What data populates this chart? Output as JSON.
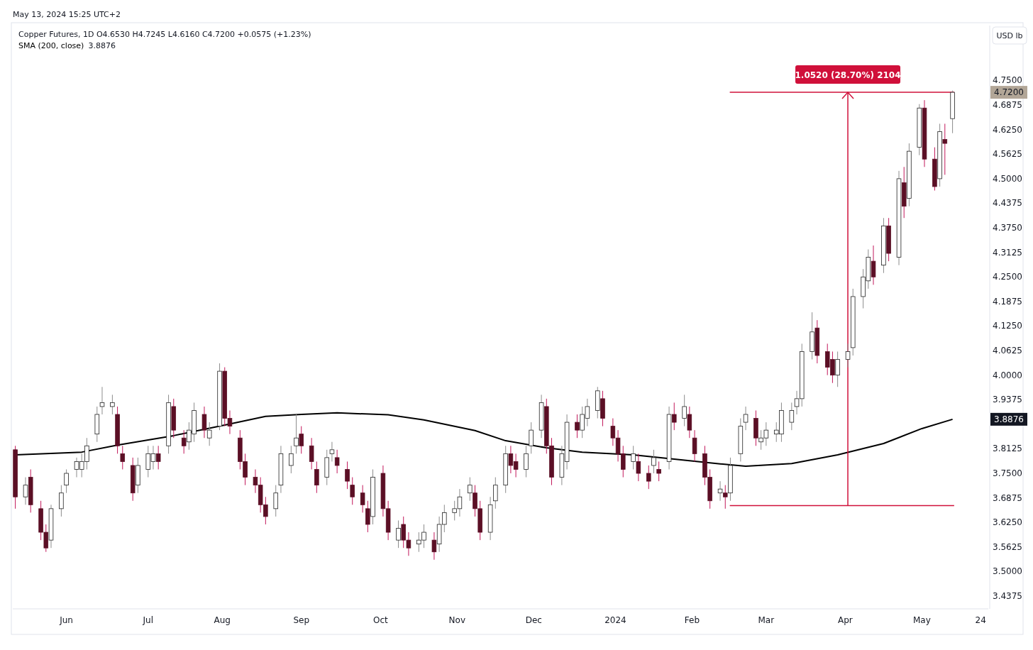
{
  "chart_data": {
    "type": "candlestick",
    "title": "Copper Futures, 1D  O4.6530 H4.7245 L4.6160 C4.7200 +0.0575 (+1.23%)",
    "subtitle": "May 13, 2024 15:25 UTC+2",
    "ylabel": "USD lb",
    "x": [
      "2023-05-12",
      "2023-05-16",
      "2023-05-18",
      "2023-05-22",
      "2023-05-24",
      "2023-05-26",
      "2023-05-30",
      "2023-06-01",
      "2023-06-05",
      "2023-06-07",
      "2023-06-09",
      "2023-06-13",
      "2023-06-15",
      "2023-06-19",
      "2023-06-21",
      "2023-06-23",
      "2023-06-27",
      "2023-06-29",
      "2023-07-03",
      "2023-07-05",
      "2023-07-07",
      "2023-07-11",
      "2023-07-13",
      "2023-07-17",
      "2023-07-19",
      "2023-07-21",
      "2023-07-25",
      "2023-07-27",
      "2023-07-31",
      "2023-08-02",
      "2023-08-04",
      "2023-08-08",
      "2023-08-10",
      "2023-08-14",
      "2023-08-16",
      "2023-08-18",
      "2023-08-22",
      "2023-08-24",
      "2023-08-28",
      "2023-08-30",
      "2023-09-01",
      "2023-09-05",
      "2023-09-07",
      "2023-09-11",
      "2023-09-13",
      "2023-09-15",
      "2023-09-19",
      "2023-09-21",
      "2023-09-25",
      "2023-09-27",
      "2023-09-29",
      "2023-10-03",
      "2023-10-05",
      "2023-10-09",
      "2023-10-11",
      "2023-10-13",
      "2023-10-17",
      "2023-10-19",
      "2023-10-23",
      "2023-10-25",
      "2023-10-27",
      "2023-10-31",
      "2023-11-02",
      "2023-11-06",
      "2023-11-08",
      "2023-11-10",
      "2023-11-14",
      "2023-11-16",
      "2023-11-20",
      "2023-11-22",
      "2023-11-24",
      "2023-11-28",
      "2023-11-30",
      "2023-12-04",
      "2023-12-06",
      "2023-12-08",
      "2023-12-12",
      "2023-12-14",
      "2023-12-18",
      "2023-12-20",
      "2023-12-22",
      "2023-12-26",
      "2023-12-28",
      "2024-01-01",
      "2024-01-03",
      "2024-01-05",
      "2024-01-09",
      "2024-01-11",
      "2024-01-15",
      "2024-01-17",
      "2024-01-19",
      "2024-01-23",
      "2024-01-25",
      "2024-01-29",
      "2024-01-31",
      "2024-02-02",
      "2024-02-06",
      "2024-02-08",
      "2024-02-12",
      "2024-02-14",
      "2024-02-16",
      "2024-02-20",
      "2024-02-22",
      "2024-02-26",
      "2024-02-28",
      "2024-03-01",
      "2024-03-05",
      "2024-03-07",
      "2024-03-11",
      "2024-03-13",
      "2024-03-15",
      "2024-03-19",
      "2024-03-21",
      "2024-03-25",
      "2024-03-27",
      "2024-03-29",
      "2024-04-02",
      "2024-04-04",
      "2024-04-08",
      "2024-04-10",
      "2024-04-12",
      "2024-04-16",
      "2024-04-18",
      "2024-04-22",
      "2024-04-24",
      "2024-04-26",
      "2024-04-30",
      "2024-05-02",
      "2024-05-06",
      "2024-05-08",
      "2024-05-10",
      "2024-05-13"
    ],
    "ohlc": [
      [
        3.81,
        3.82,
        3.66,
        3.69
      ],
      [
        3.69,
        3.74,
        3.67,
        3.72
      ],
      [
        3.74,
        3.76,
        3.65,
        3.67
      ],
      [
        3.66,
        3.68,
        3.58,
        3.6
      ],
      [
        3.6,
        3.62,
        3.55,
        3.56
      ],
      [
        3.58,
        3.67,
        3.56,
        3.66
      ],
      [
        3.66,
        3.72,
        3.64,
        3.7
      ],
      [
        3.72,
        3.76,
        3.7,
        3.75
      ],
      [
        3.76,
        3.79,
        3.74,
        3.78
      ],
      [
        3.76,
        3.8,
        3.74,
        3.78
      ],
      [
        3.78,
        3.84,
        3.76,
        3.82
      ],
      [
        3.85,
        3.92,
        3.83,
        3.9
      ],
      [
        3.92,
        3.97,
        3.9,
        3.93
      ],
      [
        3.92,
        3.95,
        3.9,
        3.93
      ],
      [
        3.9,
        3.92,
        3.8,
        3.82
      ],
      [
        3.8,
        3.82,
        3.76,
        3.78
      ],
      [
        3.77,
        3.79,
        3.68,
        3.7
      ],
      [
        3.72,
        3.79,
        3.7,
        3.77
      ],
      [
        3.76,
        3.82,
        3.74,
        3.8
      ],
      [
        3.78,
        3.82,
        3.76,
        3.8
      ],
      [
        3.8,
        3.82,
        3.76,
        3.78
      ],
      [
        3.82,
        3.95,
        3.8,
        3.93
      ],
      [
        3.92,
        3.94,
        3.84,
        3.86
      ],
      [
        3.84,
        3.86,
        3.8,
        3.82
      ],
      [
        3.83,
        3.88,
        3.81,
        3.86
      ],
      [
        3.85,
        3.93,
        3.83,
        3.91
      ],
      [
        3.9,
        3.92,
        3.84,
        3.86
      ],
      [
        3.84,
        3.88,
        3.82,
        3.86
      ],
      [
        3.87,
        4.03,
        3.86,
        4.01
      ],
      [
        4.01,
        4.02,
        3.87,
        3.89
      ],
      [
        3.89,
        3.91,
        3.85,
        3.87
      ],
      [
        3.84,
        3.86,
        3.76,
        3.78
      ],
      [
        3.78,
        3.8,
        3.72,
        3.74
      ],
      [
        3.74,
        3.76,
        3.7,
        3.72
      ],
      [
        3.72,
        3.74,
        3.65,
        3.67
      ],
      [
        3.67,
        3.69,
        3.62,
        3.64
      ],
      [
        3.66,
        3.72,
        3.64,
        3.7
      ],
      [
        3.72,
        3.82,
        3.7,
        3.8
      ],
      [
        3.77,
        3.82,
        3.75,
        3.8
      ],
      [
        3.82,
        3.9,
        3.8,
        3.84
      ],
      [
        3.85,
        3.87,
        3.8,
        3.82
      ],
      [
        3.82,
        3.84,
        3.76,
        3.78
      ],
      [
        3.76,
        3.78,
        3.7,
        3.72
      ],
      [
        3.74,
        3.81,
        3.72,
        3.79
      ],
      [
        3.8,
        3.83,
        3.78,
        3.81
      ],
      [
        3.79,
        3.81,
        3.75,
        3.77
      ],
      [
        3.76,
        3.78,
        3.71,
        3.73
      ],
      [
        3.72,
        3.74,
        3.67,
        3.69
      ],
      [
        3.7,
        3.72,
        3.65,
        3.67
      ],
      [
        3.66,
        3.68,
        3.6,
        3.62
      ],
      [
        3.64,
        3.76,
        3.62,
        3.74
      ],
      [
        3.75,
        3.77,
        3.64,
        3.66
      ],
      [
        3.66,
        3.68,
        3.58,
        3.6
      ],
      [
        3.58,
        3.63,
        3.56,
        3.61
      ],
      [
        3.62,
        3.64,
        3.56,
        3.58
      ],
      [
        3.58,
        3.6,
        3.54,
        3.56
      ],
      [
        3.57,
        3.6,
        3.55,
        3.58
      ],
      [
        3.58,
        3.62,
        3.56,
        3.6
      ],
      [
        3.58,
        3.6,
        3.53,
        3.55
      ],
      [
        3.57,
        3.64,
        3.55,
        3.62
      ],
      [
        3.62,
        3.67,
        3.6,
        3.65
      ],
      [
        3.65,
        3.68,
        3.63,
        3.66
      ],
      [
        3.66,
        3.71,
        3.64,
        3.69
      ],
      [
        3.7,
        3.74,
        3.68,
        3.72
      ],
      [
        3.7,
        3.72,
        3.64,
        3.66
      ],
      [
        3.66,
        3.68,
        3.58,
        3.6
      ],
      [
        3.6,
        3.69,
        3.58,
        3.67
      ],
      [
        3.68,
        3.74,
        3.66,
        3.72
      ],
      [
        3.72,
        3.82,
        3.7,
        3.8
      ],
      [
        3.8,
        3.82,
        3.75,
        3.77
      ],
      [
        3.78,
        3.8,
        3.74,
        3.76
      ],
      [
        3.76,
        3.82,
        3.74,
        3.8
      ],
      [
        3.82,
        3.88,
        3.8,
        3.86
      ],
      [
        3.86,
        3.95,
        3.84,
        3.93
      ],
      [
        3.92,
        3.94,
        3.8,
        3.82
      ],
      [
        3.82,
        3.84,
        3.72,
        3.74
      ],
      [
        3.74,
        3.82,
        3.72,
        3.8
      ],
      [
        3.78,
        3.9,
        3.76,
        3.88
      ],
      [
        3.88,
        3.9,
        3.84,
        3.86
      ],
      [
        3.86,
        3.92,
        3.84,
        3.9
      ],
      [
        3.89,
        3.94,
        3.87,
        3.92
      ],
      [
        3.91,
        3.97,
        3.89,
        3.96
      ],
      [
        3.94,
        3.96,
        3.87,
        3.89
      ],
      [
        3.87,
        3.89,
        3.82,
        3.84
      ],
      [
        3.84,
        3.86,
        3.78,
        3.8
      ],
      [
        3.8,
        3.82,
        3.74,
        3.76
      ],
      [
        3.78,
        3.82,
        3.76,
        3.8
      ],
      [
        3.78,
        3.8,
        3.73,
        3.75
      ],
      [
        3.75,
        3.77,
        3.71,
        3.73
      ],
      [
        3.77,
        3.81,
        3.75,
        3.79
      ],
      [
        3.76,
        3.78,
        3.73,
        3.75
      ],
      [
        3.78,
        3.92,
        3.76,
        3.9
      ],
      [
        3.9,
        3.93,
        3.86,
        3.88
      ],
      [
        3.89,
        3.95,
        3.87,
        3.92
      ],
      [
        3.9,
        3.92,
        3.84,
        3.86
      ],
      [
        3.84,
        3.86,
        3.78,
        3.8
      ],
      [
        3.8,
        3.82,
        3.72,
        3.74
      ],
      [
        3.74,
        3.76,
        3.66,
        3.68
      ],
      [
        3.7,
        3.73,
        3.68,
        3.71
      ],
      [
        3.7,
        3.72,
        3.66,
        3.69
      ],
      [
        3.7,
        3.79,
        3.68,
        3.77
      ],
      [
        3.8,
        3.89,
        3.78,
        3.87
      ],
      [
        3.88,
        3.92,
        3.86,
        3.9
      ],
      [
        3.89,
        3.91,
        3.82,
        3.84
      ],
      [
        3.83,
        3.86,
        3.81,
        3.84
      ],
      [
        3.84,
        3.88,
        3.82,
        3.86
      ],
      [
        3.85,
        3.88,
        3.83,
        3.86
      ],
      [
        3.85,
        3.93,
        3.83,
        3.91
      ],
      [
        3.88,
        3.93,
        3.86,
        3.91
      ],
      [
        3.92,
        3.96,
        3.9,
        3.94
      ],
      [
        3.94,
        4.08,
        3.92,
        4.06
      ],
      [
        4.06,
        4.16,
        4.04,
        4.11
      ],
      [
        4.12,
        4.14,
        4.03,
        4.05
      ],
      [
        4.06,
        4.08,
        4.0,
        4.02
      ],
      [
        4.04,
        4.06,
        3.98,
        4.0
      ],
      [
        4.0,
        4.06,
        3.97,
        4.04
      ],
      [
        4.04,
        4.08,
        4.02,
        4.06
      ],
      [
        4.07,
        4.22,
        4.05,
        4.2
      ],
      [
        4.2,
        4.27,
        4.17,
        4.25
      ],
      [
        4.24,
        4.32,
        4.22,
        4.3
      ],
      [
        4.29,
        4.33,
        4.23,
        4.25
      ],
      [
        4.28,
        4.4,
        4.26,
        4.38
      ],
      [
        4.38,
        4.4,
        4.29,
        4.31
      ],
      [
        4.3,
        4.52,
        4.28,
        4.5
      ],
      [
        4.49,
        4.53,
        4.4,
        4.43
      ],
      [
        4.45,
        4.59,
        4.43,
        4.57
      ],
      [
        4.58,
        4.69,
        4.56,
        4.68
      ],
      [
        4.68,
        4.7,
        4.53,
        4.55
      ],
      [
        4.55,
        4.58,
        4.47,
        4.48
      ],
      [
        4.5,
        4.64,
        4.48,
        4.62
      ],
      [
        4.6,
        4.64,
        4.51,
        4.59
      ],
      [
        4.653,
        4.7245,
        4.616,
        4.72
      ]
    ],
    "series": [
      {
        "type": "line",
        "name": "SMA (200, close)",
        "color": "#000000",
        "x": [
          "2023-05-12",
          "2023-06-07",
          "2023-06-21",
          "2023-07-13",
          "2023-08-02",
          "2023-08-18",
          "2023-09-01",
          "2023-09-15",
          "2023-10-05",
          "2023-10-19",
          "2023-11-08",
          "2023-11-20",
          "2023-12-06",
          "2023-12-20",
          "2024-01-09",
          "2024-01-25",
          "2024-02-12",
          "2024-02-22",
          "2024-03-11",
          "2024-03-29",
          "2024-04-16",
          "2024-05-01",
          "2024-05-13"
        ],
        "values": [
          3.797,
          3.804,
          3.822,
          3.846,
          3.873,
          3.895,
          3.9,
          3.904,
          3.899,
          3.886,
          3.859,
          3.833,
          3.815,
          3.804,
          3.797,
          3.786,
          3.774,
          3.768,
          3.775,
          3.797,
          3.826,
          3.864,
          3.8876
        ]
      }
    ],
    "xlim": [
      "2023-05-11",
      "2024-05-27"
    ],
    "xticks": [
      {
        "value": "2023-06-01",
        "label": "Jun"
      },
      {
        "value": "2023-07-03",
        "label": "Jul"
      },
      {
        "value": "2023-08-01",
        "label": "Aug"
      },
      {
        "value": "2023-09-01",
        "label": "Sep"
      },
      {
        "value": "2023-10-02",
        "label": "Oct"
      },
      {
        "value": "2023-11-01",
        "label": "Nov"
      },
      {
        "value": "2023-12-01",
        "label": "Dec"
      },
      {
        "value": "2024-01-02",
        "label": "2024"
      },
      {
        "value": "2024-02-01",
        "label": "Feb"
      },
      {
        "value": "2024-03-01",
        "label": "Mar"
      },
      {
        "value": "2024-04-01",
        "label": "Apr"
      },
      {
        "value": "2024-05-01",
        "label": "May"
      },
      {
        "value": "2024-05-24",
        "label": "24"
      }
    ],
    "ylim": [
      3.405,
      4.89
    ],
    "yticks": [
      {
        "value": 3.4375,
        "label": "3.4375"
      },
      {
        "value": 3.5,
        "label": "3.5000"
      },
      {
        "value": 3.5625,
        "label": "3.5625"
      },
      {
        "value": 3.625,
        "label": "3.6250"
      },
      {
        "value": 3.6875,
        "label": "3.6875"
      },
      {
        "value": 3.75,
        "label": "3.7500"
      },
      {
        "value": 3.8125,
        "label": "3.8125"
      },
      {
        "value": 3.9375,
        "label": "3.9375"
      },
      {
        "value": 4,
        "label": "4.0000"
      },
      {
        "value": 4.0625,
        "label": "4.0625"
      },
      {
        "value": 4.125,
        "label": "4.1250"
      },
      {
        "value": 4.1875,
        "label": "4.1875"
      },
      {
        "value": 4.25,
        "label": "4.2500"
      },
      {
        "value": 4.3125,
        "label": "4.3125"
      },
      {
        "value": 4.375,
        "label": "4.3750"
      },
      {
        "value": 4.4375,
        "label": "4.4375"
      },
      {
        "value": 4.5,
        "label": "4.5000"
      },
      {
        "value": 4.5625,
        "label": "4.5625"
      },
      {
        "value": 4.625,
        "label": "4.6250"
      },
      {
        "value": 4.6875,
        "label": "4.6875"
      },
      {
        "value": 4.75,
        "label": "4.7500"
      }
    ],
    "ref_lines": [
      {
        "axis": "y",
        "value": 4.72,
        "color": "#d0103a"
      },
      {
        "axis": "x",
        "value": "2024-04-02",
        "color": "#d0103a"
      },
      {
        "axis": "y",
        "value": 3.668,
        "color": "#d0103a"
      }
    ],
    "annotations": [
      "4.7200",
      "3.8876",
      "1.0520 (28.70%) 2104"
    ],
    "legend": "top left",
    "grid": false
  }
}
